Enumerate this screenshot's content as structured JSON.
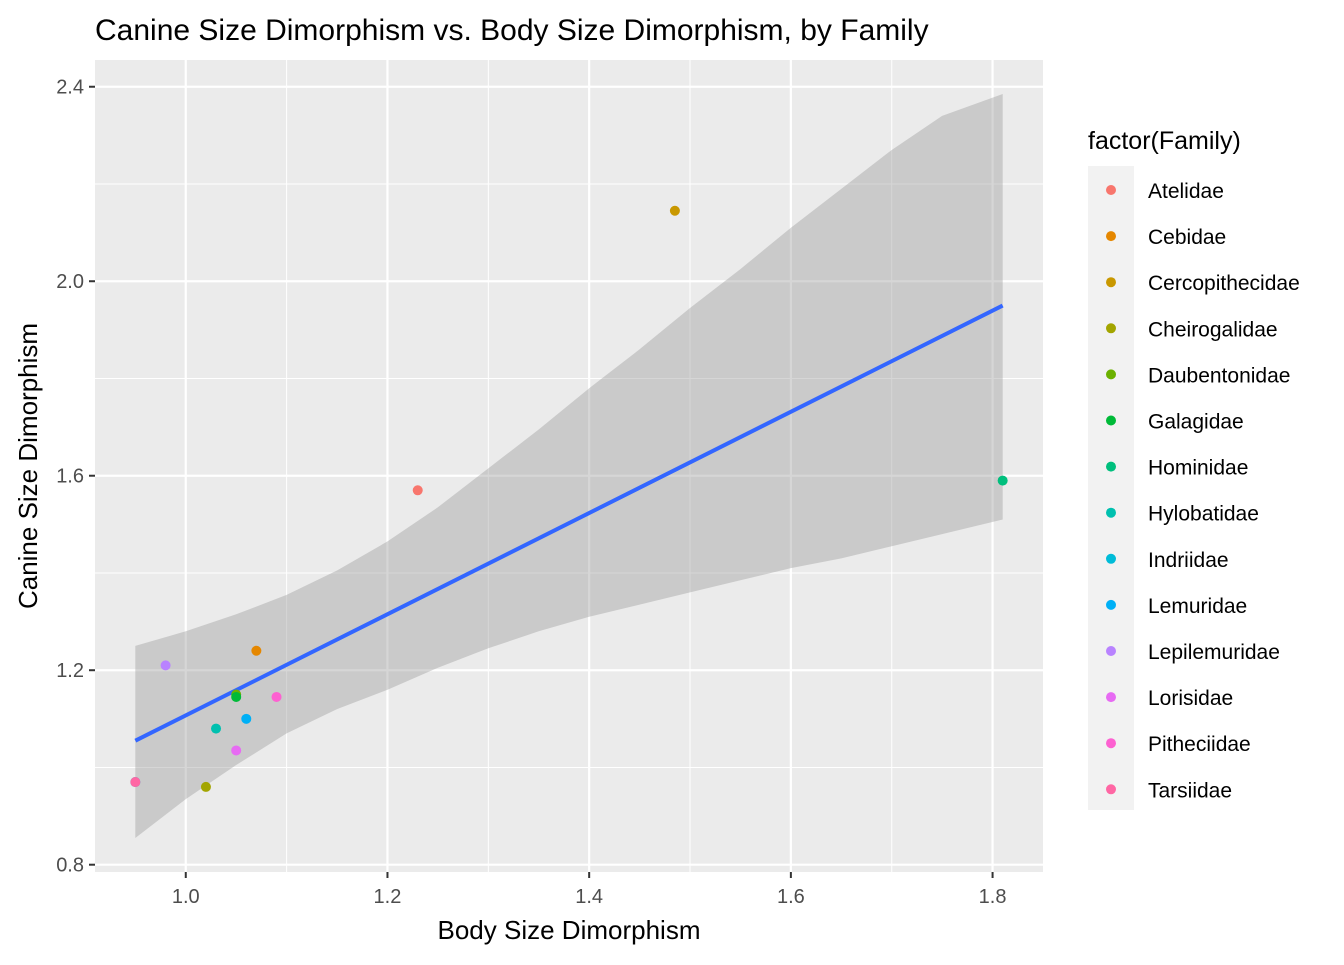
{
  "chart_data": {
    "type": "scatter",
    "title": "Canine Size Dimorphism vs. Body Size Dimorphism, by Family",
    "xlabel": "Body Size Dimorphism",
    "ylabel": "Canine Size Dimorphism",
    "xlim": [
      0.91,
      1.85
    ],
    "ylim": [
      0.785,
      2.455
    ],
    "x_ticks": [
      1.0,
      1.2,
      1.4,
      1.6,
      1.8
    ],
    "x_tick_labels": [
      "1.0",
      "1.2",
      "1.4",
      "1.6",
      "1.8"
    ],
    "y_ticks": [
      0.8,
      1.2,
      1.6,
      2.0,
      2.4
    ],
    "y_tick_labels": [
      "0.8",
      "1.2",
      "1.6",
      "2.0",
      "2.4"
    ],
    "grid": true,
    "legend": {
      "title": "factor(Family)",
      "placement": "right",
      "entries": [
        {
          "label": "Atelidae",
          "color": "#F8766D"
        },
        {
          "label": "Cebidae",
          "color": "#E58700"
        },
        {
          "label": "Cercopithecidae",
          "color": "#C99800"
        },
        {
          "label": "Cheirogalidae",
          "color": "#A3A500"
        },
        {
          "label": "Daubentonidae",
          "color": "#6BB100"
        },
        {
          "label": "Galagidae",
          "color": "#00BA38"
        },
        {
          "label": "Hominidae",
          "color": "#00BF7D"
        },
        {
          "label": "Hylobatidae",
          "color": "#00C0AF"
        },
        {
          "label": "Indriidae",
          "color": "#00BCD8"
        },
        {
          "label": "Lemuridae",
          "color": "#00B0F6"
        },
        {
          "label": "Lepilemuridae",
          "color": "#B983FF"
        },
        {
          "label": "Lorisidae",
          "color": "#E76BF3"
        },
        {
          "label": "Pitheciidae",
          "color": "#FD61D1"
        },
        {
          "label": "Tarsiidae",
          "color": "#FF67A4"
        }
      ]
    },
    "points": [
      {
        "x": 1.23,
        "y": 1.57,
        "family": "Atelidae"
      },
      {
        "x": 1.07,
        "y": 1.24,
        "family": "Cebidae"
      },
      {
        "x": 1.485,
        "y": 2.145,
        "family": "Cercopithecidae"
      },
      {
        "x": 1.02,
        "y": 0.96,
        "family": "Cheirogalidae"
      },
      {
        "x": 1.05,
        "y": 1.15,
        "family": "Daubentonidae"
      },
      {
        "x": 1.05,
        "y": 1.145,
        "family": "Galagidae"
      },
      {
        "x": 1.81,
        "y": 1.59,
        "family": "Hominidae"
      },
      {
        "x": 1.03,
        "y": 1.08,
        "family": "Hylobatidae"
      },
      {
        "x": 0.95,
        "y": 0.97,
        "family": "Indriidae"
      },
      {
        "x": 1.06,
        "y": 1.1,
        "family": "Lemuridae"
      },
      {
        "x": 0.98,
        "y": 1.21,
        "family": "Lepilemuridae"
      },
      {
        "x": 1.05,
        "y": 1.035,
        "family": "Lorisidae"
      },
      {
        "x": 1.09,
        "y": 1.145,
        "family": "Pitheciidae"
      },
      {
        "x": 0.95,
        "y": 0.97,
        "family": "Tarsiidae"
      }
    ],
    "fit_line": {
      "method": "lm",
      "color": "#3366FF",
      "x": [
        0.95,
        1.81
      ],
      "y": [
        1.055,
        1.95
      ]
    },
    "confidence_band": {
      "color": "#999999",
      "x": [
        0.95,
        1.0,
        1.05,
        1.1,
        1.15,
        1.2,
        1.25,
        1.3,
        1.35,
        1.4,
        1.45,
        1.5,
        1.55,
        1.6,
        1.65,
        1.7,
        1.75,
        1.81
      ],
      "lower": [
        0.855,
        0.935,
        1.005,
        1.07,
        1.12,
        1.16,
        1.205,
        1.245,
        1.28,
        1.31,
        1.335,
        1.36,
        1.385,
        1.41,
        1.43,
        1.455,
        1.48,
        1.51
      ],
      "upper": [
        1.25,
        1.28,
        1.315,
        1.355,
        1.405,
        1.465,
        1.535,
        1.615,
        1.695,
        1.78,
        1.86,
        1.945,
        2.025,
        2.11,
        2.19,
        2.27,
        2.34,
        2.385
      ]
    }
  }
}
